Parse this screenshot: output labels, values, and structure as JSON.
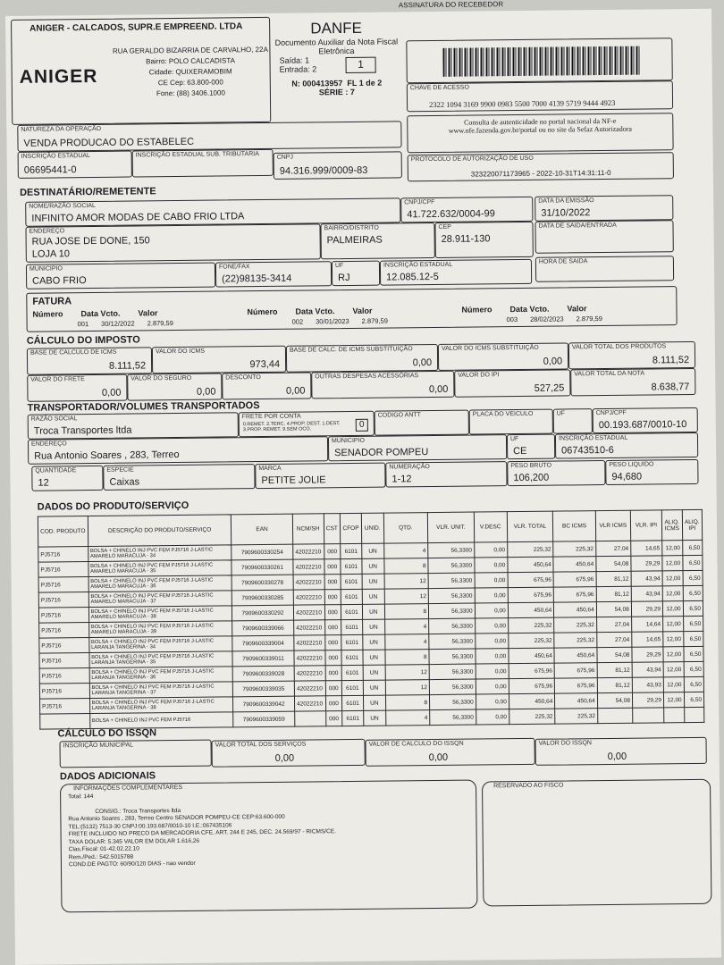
{
  "receipt": {
    "label": "ASSINATURA DO RECEBEDOR"
  },
  "emitter": {
    "name": "ANIGER - CALCADOS, SUPR.E EMPREEND. LTDA",
    "logo": "ANIGER",
    "address": "RUA GERALDO BIZARRIA DE CARVALHO, 22A",
    "bairro": "Bairro: POLO CALCADISTA",
    "city": "Cidade: QUIXERAMOBIM",
    "cep": "CE  Cep: 63.800-000",
    "phone": "Fone: (88) 3406.1000"
  },
  "danfe": {
    "title": "DANFE",
    "subtitle": "Documento Auxiliar da Nota Fiscal Eletrônica",
    "saida": "Saída: 1",
    "entrada": "Entrada: 2",
    "type": "1",
    "number": "N:  000413957",
    "sheet": "FL 1 de 2",
    "serie": "SÉRIE : 7"
  },
  "access_key": {
    "label": "CHAVE DE ACESSO",
    "value": "2322 1094 3169 9900 0983 5500 7000 4139 5719 9444 4923"
  },
  "consulta": "Consulta de autenticidade no portal nacional da NF-e www.nfe.fazenda.gov.br/portal ou no site da Sefaz Autorizadora",
  "operation": {
    "label": "NATUREZA DA OPERAÇÃO",
    "value": "VENDA PRODUCAO DO ESTABELEC"
  },
  "protocol": {
    "label": "PROTOCOLO DE AUTORIZAÇÃO DE USO",
    "value": "323220071173965 -   2022-10-31T14:31:11-0"
  },
  "ie": {
    "label": "INSCRIÇÃO ESTADUAL",
    "value": "06695441-0"
  },
  "ie_st": {
    "label": "INSCRIÇÃO ESTADUAL SUB. TRIBUTARIA",
    "value": ""
  },
  "cnpj": {
    "label": "CNPJ",
    "value": "94.316.999/0009-83"
  },
  "recipient": {
    "title": "DESTINATÁRIO/REMETENTE",
    "name": {
      "label": "NOME/RAZÃO SOCIAL",
      "value": "INFINITO AMOR MODAS DE CABO FRIO LTDA"
    },
    "cnpj": {
      "label": "CNPJ/CPF",
      "value": "41.722.632/0004-99"
    },
    "emission": {
      "label": "DATA DA EMISSÃO",
      "value": "31/10/2022"
    },
    "address": {
      "label": "ENDEREÇO",
      "value": "RUA JOSE DE DONE, 150",
      "line2": "LOJA 10"
    },
    "bairro": {
      "label": "BAIRRO/DISTRITO",
      "value": "PALMEIRAS"
    },
    "cep": {
      "label": "CEP",
      "value": "28.911-130"
    },
    "exit_date": {
      "label": "DATA DE SAIDA/ENTRADA",
      "value": ""
    },
    "city": {
      "label": "MUNICIPIO",
      "value": "CABO FRIO"
    },
    "phone": {
      "label": "FONE/FAX",
      "value": "(22)98135-3414"
    },
    "uf": {
      "label": "UF",
      "value": "RJ"
    },
    "ie": {
      "label": "INSCRIÇÃO ESTADUAL",
      "value": "12.085.12-5"
    },
    "exit_time": {
      "label": "HORA DE SAIDA",
      "value": ""
    }
  },
  "invoice": {
    "title": "FATURA",
    "headers": [
      "Número",
      "Data Vcto.",
      "Valor"
    ],
    "items": [
      {
        "n": "001",
        "date": "30/12/2022",
        "value": "2.879,59"
      },
      {
        "n": "002",
        "date": "30/01/2023",
        "value": "2.879,59"
      },
      {
        "n": "003",
        "date": "28/02/2023",
        "value": "2.879,59"
      }
    ]
  },
  "tax": {
    "title": "CÁLCULO DO IMPOSTO",
    "fields": [
      {
        "label": "BASE DE CALCULO DE ICMS",
        "value": "8.111,52"
      },
      {
        "label": "VALOR DO ICMS",
        "value": "973,44"
      },
      {
        "label": "BASE DE CALC. DE ICMS SUBSTITUIÇÃO",
        "value": "0,00"
      },
      {
        "label": "VALOR DO ICMS SUBSTITUIÇÃO",
        "value": "0,00"
      },
      {
        "label": "VALOR TOTAL DOS PRODUTOS",
        "value": "8.111,52"
      },
      {
        "label": "VALOR DO FRETE",
        "value": "0,00"
      },
      {
        "label": "VALOR DO SEGURO",
        "value": "0,00"
      },
      {
        "label": "DESCONTO",
        "value": "0,00"
      },
      {
        "label": "OUTRAS DESPESAS ACESSÓRIAS",
        "value": "0,00"
      },
      {
        "label": "VALOR DO IPI",
        "value": "527,25"
      },
      {
        "label": "VALOR TOTAL DA NOTA",
        "value": "8.638,77"
      }
    ]
  },
  "transport": {
    "title": "TRANSPORTADOR/VOLUMES TRANSPORTADOS",
    "name": {
      "label": "RAZÃO SOCIAL",
      "value": "Troca Transportes ltda"
    },
    "freight": {
      "label": "FRETE POR CONTA",
      "options": "0.REMET. 2.TERC. 4.PROP. DEST. 1.DEST. 3.PROP. REMET. 9.SEM OCO.",
      "value": "0"
    },
    "antt": {
      "label": "CODIGO ANTT",
      "value": ""
    },
    "plate": {
      "label": "PLACA DO VEICULO",
      "value": ""
    },
    "uf1": {
      "label": "UF",
      "value": ""
    },
    "cnpj": {
      "label": "CNPJ/CPF",
      "value": "00.193.687/0010-10"
    },
    "address": {
      "label": "ENDEREÇO",
      "value": "Rua Antonio Soares , 283, Terreo"
    },
    "city": {
      "label": "MUNICIPIO",
      "value": "SENADOR POMPEU"
    },
    "uf": {
      "label": "UF",
      "value": "CE"
    },
    "ie": {
      "label": "INSCRIÇÃO ESTADUAL",
      "value": "06743510-6"
    },
    "qty": {
      "label": "QUANTIDADE",
      "value": "12"
    },
    "species": {
      "label": "ESPECIE",
      "value": "Caixas"
    },
    "brand": {
      "label": "MARCA",
      "value": "PETITE JOLIE"
    },
    "numbering": {
      "label": "NUMERAÇÃO",
      "value": "1-12"
    },
    "gross": {
      "label": "PESO BRUTO",
      "value": "106,200"
    },
    "net": {
      "label": "PESO LIQUIDO",
      "value": "94,680"
    }
  },
  "products": {
    "title": "DADOS DO PRODUTO/SERVIÇO",
    "headers": [
      "COD. PRODUTO",
      "DESCRIÇÃO DO PRODUTO/SERVIÇO",
      "EAN",
      "NCM/SH",
      "CST",
      "CFOP",
      "UNID.",
      "QTD.",
      "VLR. UNIT.",
      "V.DESC",
      "VLR. TOTAL",
      "BC ICMS",
      "VLR ICMS",
      "VLR. IPI",
      "ALIQ. ICMS",
      "ALIQ. IPI"
    ],
    "rows": [
      [
        "PJ5716",
        "BOLSA + CHINELO INJ PVC FEM PJ5716 J-LASTIC AMARELO MARACUJA - 34",
        "7909600330254",
        "42022210",
        "000",
        "6101",
        "UN",
        "4",
        "56,3300",
        "0,00",
        "225,32",
        "225,32",
        "27,04",
        "14,65",
        "12,00",
        "6,50"
      ],
      [
        "PJ5716",
        "BOLSA + CHINELO INJ PVC FEM PJ5716 J-LASTIC AMARELO MARACUJA - 35",
        "7909600330261",
        "42022210",
        "000",
        "6101",
        "UN",
        "8",
        "56,3300",
        "0,00",
        "450,64",
        "450,64",
        "54,08",
        "29,29",
        "12,00",
        "6,50"
      ],
      [
        "PJ5716",
        "BOLSA + CHINELO INJ PVC FEM PJ5716 J-LASTIC AMARELO MARACUJA - 36",
        "7909600330278",
        "42022210",
        "000",
        "6101",
        "UN",
        "12",
        "56,3300",
        "0,00",
        "675,96",
        "675,96",
        "81,12",
        "43,94",
        "12,00",
        "6,50"
      ],
      [
        "PJ5716",
        "BOLSA + CHINELO INJ PVC FEM PJ5716 J-LASTIC AMARELO MARACUJA - 37",
        "7909600330285",
        "42022210",
        "000",
        "6101",
        "UN",
        "12",
        "56,3300",
        "0,00",
        "675,96",
        "675,96",
        "81,12",
        "43,94",
        "12,00",
        "6,50"
      ],
      [
        "PJ5716",
        "BOLSA + CHINELO INJ PVC FEM PJ5716 J-LASTIC AMARELO MARACUJA - 38",
        "7909600330292",
        "42022210",
        "000",
        "6101",
        "UN",
        "8",
        "56,3300",
        "0,00",
        "450,64",
        "450,64",
        "54,08",
        "29,29",
        "12,00",
        "6,50"
      ],
      [
        "PJ5716",
        "BOLSA + CHINELO INJ PVC FEM PJ5716 J-LASTIC AMARELO MARACUJA - 39",
        "7909600339066",
        "42022210",
        "000",
        "6101",
        "UN",
        "4",
        "56,3300",
        "0,00",
        "225,32",
        "225,32",
        "27,04",
        "14,64",
        "12,00",
        "6,50"
      ],
      [
        "PJ5716",
        "BOLSA + CHINELO INJ PVC FEM PJ5716 J-LASTIC LARANJA TANGERINA - 34",
        "7909600339004",
        "42022210",
        "000",
        "6101",
        "UN",
        "4",
        "56,3300",
        "0,00",
        "225,32",
        "225,32",
        "27,04",
        "14,65",
        "12,00",
        "6,50"
      ],
      [
        "PJ5716",
        "BOLSA + CHINELO INJ PVC FEM PJ5716 J-LASTIC LARANJA TANGERINA - 35",
        "7909600339011",
        "42022210",
        "000",
        "6101",
        "UN",
        "8",
        "56,3300",
        "0,00",
        "450,64",
        "450,64",
        "54,08",
        "29,29",
        "12,00",
        "6,50"
      ],
      [
        "PJ5716",
        "BOLSA + CHINELO INJ PVC FEM PJ5716 J-LASTIC LARANJA TANGERINA - 36",
        "7909600339028",
        "42022210",
        "000",
        "6101",
        "UN",
        "12",
        "56,3300",
        "0,00",
        "675,96",
        "675,96",
        "81,12",
        "43,94",
        "12,00",
        "6,50"
      ],
      [
        "PJ5716",
        "BOLSA + CHINELO INJ PVC FEM PJ5716 J-LASTIC LARANJA TANGERINA - 37",
        "7909600339035",
        "42022210",
        "000",
        "6101",
        "UN",
        "12",
        "56,3300",
        "0,00",
        "675,96",
        "675,96",
        "81,12",
        "43,93",
        "12,00",
        "6,50"
      ],
      [
        "PJ5716",
        "BOLSA + CHINELO INJ PVC FEM PJ5716 J-LASTIC LARANJA TANGERINA - 38",
        "7909600339042",
        "42022210",
        "000",
        "6101",
        "UN",
        "8",
        "56,3300",
        "0,00",
        "450,64",
        "450,64",
        "54,08",
        "29,29",
        "12,00",
        "6,50"
      ],
      [
        "",
        "BOLSA + CHINELO INJ PVC FEM PJ5716",
        "7909600339059",
        "",
        "000",
        "6101",
        "UN",
        "4",
        "56,3300",
        "0,00",
        "225,32",
        "225,32",
        "",
        "",
        "",
        ""
      ]
    ]
  },
  "issqn": {
    "title": "CÁLCULO DO ISSQN",
    "fields": [
      {
        "label": "INSCRIÇÃO MUNICIPAL",
        "value": ""
      },
      {
        "label": "VALOR TOTAL DOS SERVIÇOS",
        "value": "0,00"
      },
      {
        "label": "VALOR DE CALCULO DO ISSQN",
        "value": "0,00"
      },
      {
        "label": "VALOR DO ISSQN",
        "value": "0,00"
      }
    ]
  },
  "additional": {
    "title": "DADOS ADICIONAIS",
    "info_label": "INFORMAÇÕES COMPLEMENTARES",
    "fisco_label": "RESERVADO AO FISCO",
    "lines": [
      "Total:    144",
      "",
      "CONSIG.: Troca Transportes ltda",
      "Rua Antonio Soares , 283, Terreo  Centro SENADOR POMPEU-CE CEP:63.600-000",
      "TEL:(5132) 7513-30    CNPJ:00.193.687/0010-10 I.E.:067435106",
      "FRETE INCLUIDO NO PRECO DA MERCADORIA CFE. ART. 244 E 245, DEC. 24.569/97 - RICMS/CE.",
      "TAXA DOLAR: 5.345    VALOR EM DOLAR 1.616,26",
      "Clas.Fiscal: 01-42.02.22.10",
      "Rem./Ped.: 542.5015788",
      "COND.DE PAGTO: 60/90/120 DIAS - nao vendor"
    ]
  }
}
